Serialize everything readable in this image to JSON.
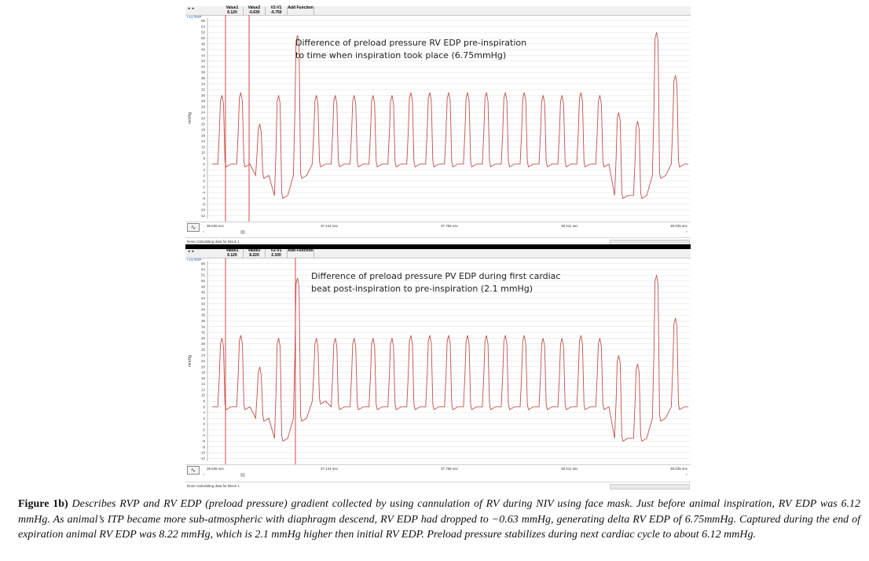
{
  "panels": [
    {
      "id": "top",
      "header": {
        "columns": [
          "Value1",
          "Value2",
          "V2-V1",
          "Add Function"
        ],
        "values": [
          "6.120",
          "-0.630",
          "-6.750",
          ""
        ],
        "channel": "• LV RVP",
        "nav": "◄   ►"
      },
      "annotation": {
        "line1": "Difference of preload pressure RV EDP pre-inspiration",
        "line2": "to time when inspiration took place (6.75mmHg)"
      },
      "time_ticks": [
        "36.536 sec",
        "37.141 sec",
        "37.756 sec",
        "38.411 sec",
        "39.035 sec"
      ],
      "status": "Done Calculating data for Block 1",
      "scroll_left": "<",
      "scroll_right": ">"
    },
    {
      "id": "bottom",
      "header": {
        "columns": [
          "Value1",
          "Value2",
          "V2-V1",
          "Add Function"
        ],
        "values": [
          "6.120",
          "8.220",
          "2.100",
          ""
        ],
        "channel": "• LV RVP",
        "nav": "◄   ►"
      },
      "annotation": {
        "line1": "Difference of preload pressure PV EDP during first cardiac",
        "line2": "beat post-inspiration to pre-inspiration (2.1 mmHg)"
      },
      "time_ticks": [
        "36.536 sec",
        "37.141 sec",
        "37.756 sec",
        "38.411 sec",
        "39.035 sec"
      ],
      "status": "Done Calculating data for Block 1",
      "scroll_left": "<",
      "scroll_right": ">"
    }
  ],
  "y_axis": {
    "label": "mmHg",
    "ticks": [
      "56",
      "54",
      "52",
      "50",
      "48",
      "46",
      "44",
      "42",
      "40",
      "38",
      "36",
      "34",
      "32",
      "30",
      "28",
      "26",
      "24",
      "22",
      "20",
      "18",
      "16",
      "14",
      "12",
      "10",
      "8",
      "6",
      "4",
      "2",
      "0",
      "-2",
      "-4",
      "-6",
      "-8",
      "-10",
      "-12"
    ],
    "range": [
      -13,
      57
    ]
  },
  "chart_data": [
    {
      "type": "line",
      "title": "",
      "xlabel": "",
      "ylabel": "mmHg",
      "ylim": [
        -13,
        57
      ],
      "xlim": [
        36.536,
        39.035
      ],
      "x_tick_labels": [
        "36.536 sec",
        "37.141 sec",
        "37.756 sec",
        "38.411 sec",
        "39.035 sec"
      ],
      "series": [
        {
          "color": "#c0504d",
          "beats": [
            {
              "min": 6,
              "peak": 30
            },
            {
              "min": 6,
              "peak": 31
            },
            {
              "min": 2,
              "peak": 20
            },
            {
              "min": -5,
              "peak": 30
            },
            {
              "min": 2,
              "peak": 51
            },
            {
              "min": 6,
              "peak": 30
            },
            {
              "min": 6,
              "peak": 30
            },
            {
              "min": 6,
              "peak": 30
            },
            {
              "min": 6,
              "peak": 30
            },
            {
              "min": 6,
              "peak": 30
            },
            {
              "min": 6,
              "peak": 31
            },
            {
              "min": 6,
              "peak": 31
            },
            {
              "min": 6,
              "peak": 31
            },
            {
              "min": 6,
              "peak": 31
            },
            {
              "min": 6,
              "peak": 31
            },
            {
              "min": 6,
              "peak": 31
            },
            {
              "min": 6,
              "peak": 31
            },
            {
              "min": 6,
              "peak": 30
            },
            {
              "min": 6,
              "peak": 30
            },
            {
              "min": 6,
              "peak": 31
            },
            {
              "min": 6,
              "peak": 30
            },
            {
              "min": -5,
              "peak": 24
            },
            {
              "min": -5,
              "peak": 21
            },
            {
              "min": 2,
              "peak": 52
            },
            {
              "min": 6,
              "peak": 37
            }
          ]
        }
      ],
      "cursors": {
        "value1": 6.12,
        "value2": -0.63,
        "delta": -6.75
      }
    },
    {
      "type": "line",
      "title": "",
      "xlabel": "",
      "ylabel": "mmHg",
      "ylim": [
        -13,
        57
      ],
      "xlim": [
        36.536,
        39.035
      ],
      "x_tick_labels": [
        "36.536 sec",
        "37.141 sec",
        "37.756 sec",
        "38.411 sec",
        "39.035 sec"
      ],
      "series": [
        {
          "color": "#c0504d",
          "beats": [
            {
              "min": 6,
              "peak": 30
            },
            {
              "min": 6,
              "peak": 31
            },
            {
              "min": 2,
              "peak": 20
            },
            {
              "min": -5,
              "peak": 30
            },
            {
              "min": 2,
              "peak": 51
            },
            {
              "min": 8,
              "peak": 30
            },
            {
              "min": 6,
              "peak": 30
            },
            {
              "min": 6,
              "peak": 30
            },
            {
              "min": 6,
              "peak": 30
            },
            {
              "min": 6,
              "peak": 30
            },
            {
              "min": 6,
              "peak": 31
            },
            {
              "min": 6,
              "peak": 31
            },
            {
              "min": 6,
              "peak": 31
            },
            {
              "min": 6,
              "peak": 31
            },
            {
              "min": 6,
              "peak": 31
            },
            {
              "min": 6,
              "peak": 31
            },
            {
              "min": 6,
              "peak": 31
            },
            {
              "min": 6,
              "peak": 30
            },
            {
              "min": 6,
              "peak": 30
            },
            {
              "min": 6,
              "peak": 31
            },
            {
              "min": 6,
              "peak": 30
            },
            {
              "min": -5,
              "peak": 24
            },
            {
              "min": -5,
              "peak": 21
            },
            {
              "min": 2,
              "peak": 52
            },
            {
              "min": 6,
              "peak": 37
            }
          ]
        }
      ],
      "cursors": {
        "value1": 6.12,
        "value2": 8.22,
        "delta": 2.1
      }
    }
  ],
  "caption": {
    "label": "Figure 1b)",
    "text": "Describes RVP and RV EDP (preload pressure) gradient collected by using cannulation of RV during NIV using face mask. Just before animal inspiration, RV EDP was 6.12 mmHg. As animal’s ITP became more sub-atmospheric with diaphragm descend, RV EDP had dropped to −0.63 mmHg, generating delta RV EDP of 6.75mmHg. Captured during the end of expiration animal RV EDP was 8.22 mmHg, which is 2.1 mmHg higher then initial RV EDP. Preload pressure stabilizes during next cardiac cycle to about 6.12 mmHg."
  }
}
